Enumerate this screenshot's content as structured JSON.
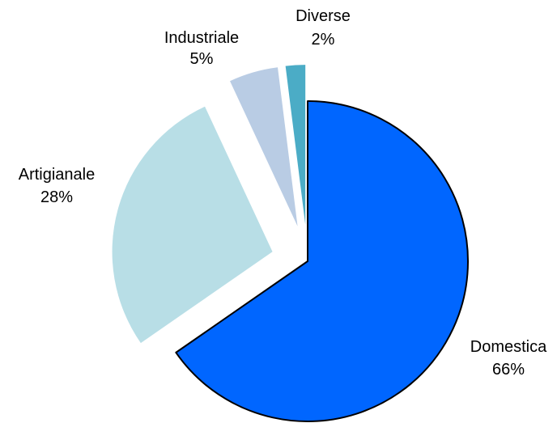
{
  "chart_data": {
    "type": "pie",
    "title": "",
    "start_angle_deg": 0,
    "direction": "clockwise",
    "slices": [
      {
        "label": "Domestica",
        "value": 66,
        "value_label": "66%",
        "color": "#0066FF",
        "stroke": "#000000",
        "exploded": false
      },
      {
        "label": "Artigianale",
        "value": 28,
        "value_label": "28%",
        "color": "#B8DEE6",
        "stroke": "none",
        "exploded": true
      },
      {
        "label": "Industriale",
        "value": 5,
        "value_label": "5%",
        "color": "#B9CCE4",
        "stroke": "none",
        "exploded": true
      },
      {
        "label": "Diverse",
        "value": 2,
        "value_label": "2%",
        "color": "#4BACC6",
        "stroke": "none",
        "exploded": true
      }
    ]
  }
}
